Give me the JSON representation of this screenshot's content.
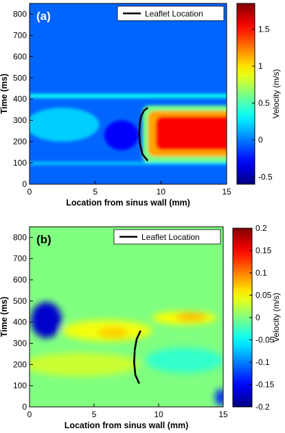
{
  "chart_data": [
    {
      "type": "heatmap",
      "panel_label": "(a)",
      "xlabel": "Location from sinus wall (mm)",
      "ylabel": "Time (ms)",
      "colorbar_label": "Velocity (m/s)",
      "legend": "Leaflet Location",
      "xlim": [
        0,
        15
      ],
      "ylim": [
        0,
        850
      ],
      "xticks": [
        0,
        5,
        10,
        15
      ],
      "yticks": [
        0,
        100,
        200,
        300,
        400,
        500,
        600,
        700,
        800
      ],
      "clim": [
        -0.6,
        1.85
      ],
      "cticks": [
        -0.5,
        0,
        0.5,
        1,
        1.5
      ],
      "colormap": "jet",
      "background_value": -0.05,
      "regions": [
        {
          "kind": "rect",
          "x": [
            8.6,
            15
          ],
          "t": [
            100,
            370
          ],
          "value": 0.6
        },
        {
          "kind": "rect",
          "x": [
            9.0,
            15
          ],
          "t": [
            130,
            345
          ],
          "value": 1.15
        },
        {
          "kind": "rect",
          "x": [
            9.6,
            15
          ],
          "t": [
            160,
            320
          ],
          "value": 1.55
        },
        {
          "kind": "ellipse",
          "cx": 2.5,
          "ct": 280,
          "rx": 2.8,
          "rt": 80,
          "value": 0.2
        },
        {
          "kind": "ellipse",
          "cx": 7.0,
          "ct": 230,
          "rx": 1.3,
          "rt": 70,
          "value": -0.3
        },
        {
          "kind": "hband",
          "x": [
            0,
            15
          ],
          "t": [
            405,
            425
          ],
          "value": 0.35
        },
        {
          "kind": "hband",
          "x": [
            0,
            15
          ],
          "t": [
            92,
            104
          ],
          "value": 0.25
        }
      ],
      "leaflet": {
        "x": [
          9.0,
          8.6,
          8.4,
          8.35,
          8.4,
          8.5,
          8.7,
          9.0
        ],
        "t": [
          110,
          140,
          190,
          240,
          290,
          320,
          345,
          360
        ]
      }
    },
    {
      "type": "heatmap",
      "panel_label": "(b)",
      "xlabel": "Location from sinus wall (mm)",
      "ylabel": "Time (ms)",
      "colorbar_label": "Velocity (m/s)",
      "legend": "Leaflet Location",
      "xlim": [
        0,
        15
      ],
      "ylim": [
        0,
        850
      ],
      "xticks": [
        0,
        5,
        10,
        15
      ],
      "yticks": [
        0,
        100,
        200,
        300,
        400,
        500,
        600,
        700,
        800
      ],
      "clim": [
        -0.2,
        0.2
      ],
      "cticks": [
        -0.2,
        -0.15,
        -0.1,
        -0.05,
        0,
        0.05,
        0.1,
        0.15,
        0.2
      ],
      "colormap": "jet",
      "background_value": 0.0,
      "regions": [
        {
          "kind": "ellipse",
          "cx": 1.3,
          "ct": 410,
          "rx": 1.2,
          "rt": 85,
          "value": -0.17
        },
        {
          "kind": "ellipse",
          "cx": 6.0,
          "ct": 360,
          "rx": 3.5,
          "rt": 50,
          "value": 0.045
        },
        {
          "kind": "ellipse",
          "cx": 12.0,
          "ct": 420,
          "rx": 2.5,
          "rt": 30,
          "value": 0.05
        },
        {
          "kind": "ellipse",
          "cx": 12.5,
          "ct": 425,
          "rx": 1.2,
          "rt": 18,
          "value": 0.08
        },
        {
          "kind": "ellipse",
          "cx": 6.5,
          "ct": 350,
          "rx": 1.2,
          "rt": 25,
          "value": 0.07
        },
        {
          "kind": "ellipse",
          "cx": 4.0,
          "ct": 200,
          "rx": 4.5,
          "rt": 55,
          "value": 0.03
        },
        {
          "kind": "ellipse",
          "cx": 12.0,
          "ct": 220,
          "rx": 3.0,
          "rt": 60,
          "value": -0.03
        },
        {
          "kind": "ellipse",
          "cx": 14.8,
          "ct": 45,
          "rx": 0.4,
          "rt": 40,
          "value": -0.14
        }
      ],
      "leaflet": {
        "x": [
          8.5,
          8.2,
          8.1,
          8.15,
          8.3,
          8.6
        ],
        "t": [
          110,
          150,
          210,
          270,
          320,
          360
        ]
      }
    }
  ]
}
